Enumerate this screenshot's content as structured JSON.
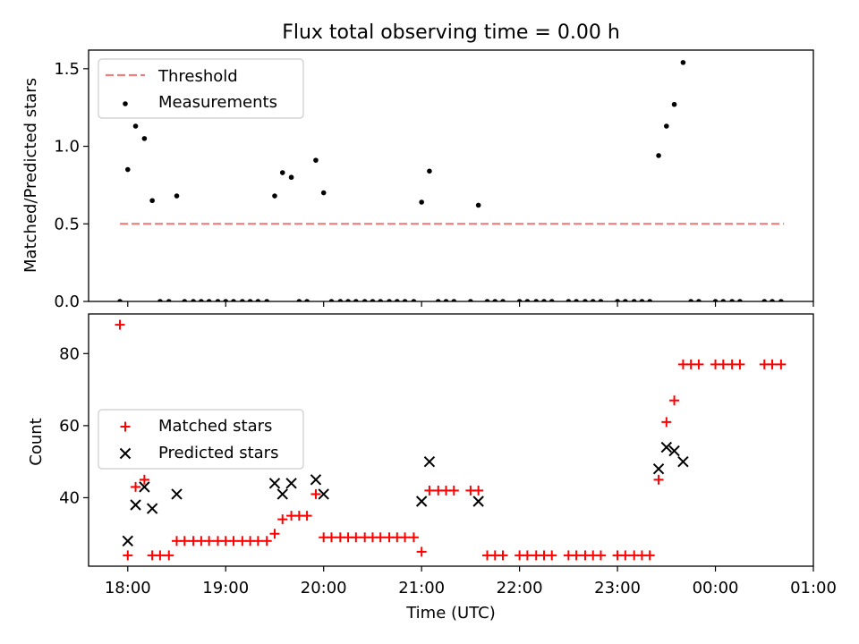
{
  "chart_data": [
    {
      "type": "scatter",
      "title": "Flux total observing time = 0.00 h",
      "xlabel": "",
      "ylabel": "Matched/Predicted stars",
      "xlim_hours": [
        17.6,
        25.0
      ],
      "ylim": [
        0,
        1.62
      ],
      "yticks": [
        "0.0",
        "0.5",
        "1.0",
        "1.5"
      ],
      "legend_position": "upper-left",
      "threshold": {
        "name": "Threshold",
        "value": 0.5,
        "x_range": [
          17.92,
          24.7
        ],
        "color": "#f08080",
        "style": "dashed"
      },
      "series": [
        {
          "name": "Measurements",
          "color": "#000000",
          "marker": "dot",
          "points": [
            [
              17.92,
              0
            ],
            [
              18.0,
              0.85
            ],
            [
              18.08,
              1.13
            ],
            [
              18.17,
              1.05
            ],
            [
              18.25,
              0.65
            ],
            [
              18.33,
              0
            ],
            [
              18.42,
              0
            ],
            [
              18.5,
              0.68
            ],
            [
              18.58,
              0
            ],
            [
              18.67,
              0
            ],
            [
              18.75,
              0
            ],
            [
              18.83,
              0
            ],
            [
              18.92,
              0
            ],
            [
              19.0,
              0
            ],
            [
              19.08,
              0
            ],
            [
              19.17,
              0
            ],
            [
              19.25,
              0
            ],
            [
              19.33,
              0
            ],
            [
              19.42,
              0
            ],
            [
              19.5,
              0.68
            ],
            [
              19.58,
              0.83
            ],
            [
              19.67,
              0.8
            ],
            [
              19.75,
              0
            ],
            [
              19.83,
              0
            ],
            [
              19.92,
              0.91
            ],
            [
              20.0,
              0.7
            ],
            [
              20.08,
              0
            ],
            [
              20.17,
              0
            ],
            [
              20.25,
              0
            ],
            [
              20.33,
              0
            ],
            [
              20.42,
              0
            ],
            [
              20.5,
              0
            ],
            [
              20.58,
              0
            ],
            [
              20.67,
              0
            ],
            [
              20.75,
              0
            ],
            [
              20.83,
              0
            ],
            [
              20.92,
              0
            ],
            [
              21.0,
              0.64
            ],
            [
              21.08,
              0.84
            ],
            [
              21.17,
              0
            ],
            [
              21.25,
              0
            ],
            [
              21.33,
              0
            ],
            [
              21.5,
              0
            ],
            [
              21.58,
              0.62
            ],
            [
              21.67,
              0
            ],
            [
              21.75,
              0
            ],
            [
              21.83,
              0
            ],
            [
              22.0,
              0
            ],
            [
              22.08,
              0
            ],
            [
              22.17,
              0
            ],
            [
              22.25,
              0
            ],
            [
              22.33,
              0
            ],
            [
              22.5,
              0
            ],
            [
              22.58,
              0
            ],
            [
              22.67,
              0
            ],
            [
              22.75,
              0
            ],
            [
              22.83,
              0
            ],
            [
              23.0,
              0
            ],
            [
              23.08,
              0
            ],
            [
              23.17,
              0
            ],
            [
              23.25,
              0
            ],
            [
              23.33,
              0
            ],
            [
              23.42,
              0.94
            ],
            [
              23.5,
              1.13
            ],
            [
              23.58,
              1.27
            ],
            [
              23.67,
              1.54
            ],
            [
              23.75,
              0
            ],
            [
              23.83,
              0
            ],
            [
              24.0,
              0
            ],
            [
              24.08,
              0
            ],
            [
              24.17,
              0
            ],
            [
              24.25,
              0
            ],
            [
              24.5,
              0
            ],
            [
              24.58,
              0
            ],
            [
              24.67,
              0
            ]
          ]
        }
      ]
    },
    {
      "type": "scatter",
      "title": "",
      "xlabel": "Time (UTC)",
      "ylabel": "Count",
      "xlim_hours": [
        17.6,
        25.0
      ],
      "ylim": [
        21,
        91
      ],
      "yticks": [
        "40",
        "60",
        "80"
      ],
      "xticks": [
        "18:00",
        "19:00",
        "20:00",
        "21:00",
        "22:00",
        "23:00",
        "00:00",
        "01:00"
      ],
      "legend_position": "center-left",
      "series": [
        {
          "name": "Matched stars",
          "color": "#ff0000",
          "marker": "plus",
          "points": [
            [
              17.92,
              88
            ],
            [
              18.0,
              24
            ],
            [
              18.08,
              43
            ],
            [
              18.17,
              45
            ],
            [
              18.25,
              24
            ],
            [
              18.33,
              24
            ],
            [
              18.42,
              24
            ],
            [
              18.5,
              28
            ],
            [
              18.58,
              28
            ],
            [
              18.67,
              28
            ],
            [
              18.75,
              28
            ],
            [
              18.83,
              28
            ],
            [
              18.92,
              28
            ],
            [
              19.0,
              28
            ],
            [
              19.08,
              28
            ],
            [
              19.17,
              28
            ],
            [
              19.25,
              28
            ],
            [
              19.33,
              28
            ],
            [
              19.42,
              28
            ],
            [
              19.5,
              30
            ],
            [
              19.58,
              34
            ],
            [
              19.67,
              35
            ],
            [
              19.75,
              35
            ],
            [
              19.83,
              35
            ],
            [
              19.92,
              41
            ],
            [
              20.0,
              29
            ],
            [
              20.08,
              29
            ],
            [
              20.17,
              29
            ],
            [
              20.25,
              29
            ],
            [
              20.33,
              29
            ],
            [
              20.42,
              29
            ],
            [
              20.5,
              29
            ],
            [
              20.58,
              29
            ],
            [
              20.67,
              29
            ],
            [
              20.75,
              29
            ],
            [
              20.83,
              29
            ],
            [
              20.92,
              29
            ],
            [
              21.0,
              25
            ],
            [
              21.08,
              42
            ],
            [
              21.17,
              42
            ],
            [
              21.25,
              42
            ],
            [
              21.33,
              42
            ],
            [
              21.5,
              42
            ],
            [
              21.58,
              42
            ],
            [
              21.67,
              24
            ],
            [
              21.75,
              24
            ],
            [
              21.83,
              24
            ],
            [
              22.0,
              24
            ],
            [
              22.08,
              24
            ],
            [
              22.17,
              24
            ],
            [
              22.25,
              24
            ],
            [
              22.33,
              24
            ],
            [
              22.5,
              24
            ],
            [
              22.58,
              24
            ],
            [
              22.67,
              24
            ],
            [
              22.75,
              24
            ],
            [
              22.83,
              24
            ],
            [
              23.0,
              24
            ],
            [
              23.08,
              24
            ],
            [
              23.17,
              24
            ],
            [
              23.25,
              24
            ],
            [
              23.33,
              24
            ],
            [
              23.42,
              45
            ],
            [
              23.5,
              61
            ],
            [
              23.58,
              67
            ],
            [
              23.67,
              77
            ],
            [
              23.75,
              77
            ],
            [
              23.83,
              77
            ],
            [
              24.0,
              77
            ],
            [
              24.08,
              77
            ],
            [
              24.17,
              77
            ],
            [
              24.25,
              77
            ],
            [
              24.5,
              77
            ],
            [
              24.58,
              77
            ],
            [
              24.67,
              77
            ]
          ]
        },
        {
          "name": "Predicted stars",
          "color": "#000000",
          "marker": "x",
          "points": [
            [
              18.0,
              28
            ],
            [
              18.08,
              38
            ],
            [
              18.17,
              43
            ],
            [
              18.25,
              37
            ],
            [
              18.5,
              41
            ],
            [
              19.5,
              44
            ],
            [
              19.58,
              41
            ],
            [
              19.67,
              44
            ],
            [
              19.92,
              45
            ],
            [
              20.0,
              41
            ],
            [
              21.0,
              39
            ],
            [
              21.08,
              50
            ],
            [
              21.58,
              39
            ],
            [
              23.42,
              48
            ],
            [
              23.5,
              54
            ],
            [
              23.58,
              53
            ],
            [
              23.67,
              50
            ]
          ]
        }
      ]
    }
  ]
}
